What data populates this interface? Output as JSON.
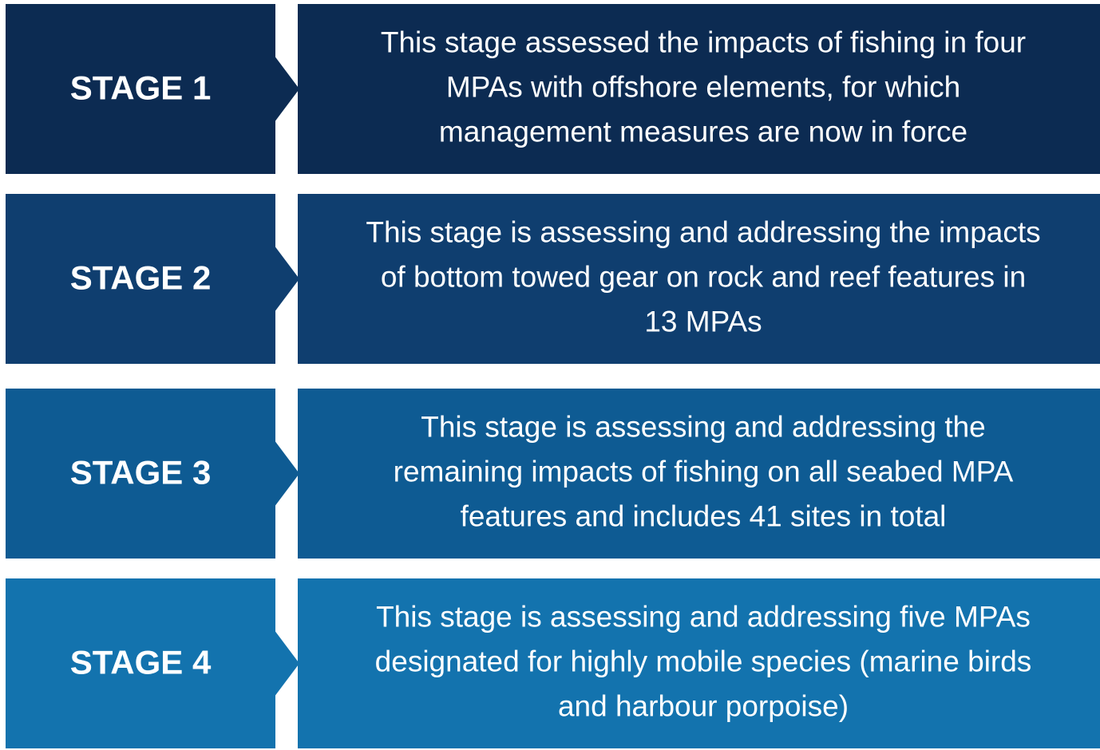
{
  "stages": [
    {
      "label": "STAGE 1",
      "lines": [
        "This stage assessed the impacts of fishing in four",
        "MPAs with offshore elements, for which",
        "management measures are now in force"
      ]
    },
    {
      "label": "STAGE 2",
      "lines": [
        "This stage is assessing and addressing the impacts",
        "of bottom towed gear on rock and reef features in",
        "13 MPAs"
      ]
    },
    {
      "label": "STAGE 3",
      "lines": [
        "This stage is assessing and addressing the",
        "remaining impacts of fishing on all seabed MPA",
        "features and includes 41 sites in total"
      ]
    },
    {
      "label": "STAGE 4",
      "lines": [
        "This stage is assessing and addressing five MPAs",
        "designated for highly mobile species (marine birds",
        "and harbour porpoise)"
      ]
    }
  ]
}
